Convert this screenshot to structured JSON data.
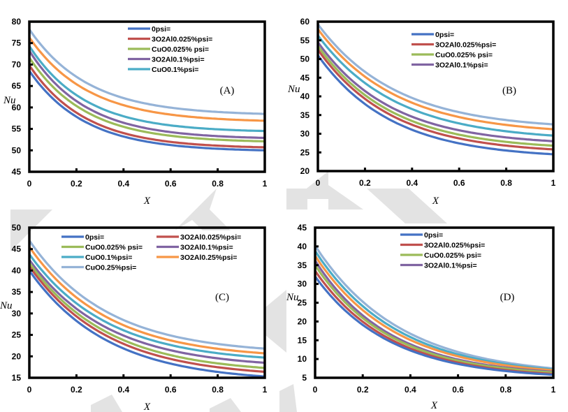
{
  "chart_data": [
    {
      "type": "line",
      "panel_label": "(A)",
      "xlabel": "X",
      "ylabel": "Nu",
      "xlim": [
        0,
        1
      ],
      "ylim": [
        45,
        80
      ],
      "x_ticks": [
        "0",
        "0.2",
        "0.4",
        "0.6",
        "0.8",
        "1"
      ],
      "y_ticks": [
        "45",
        "50",
        "55",
        "60",
        "65",
        "70",
        "75",
        "80"
      ],
      "legend": {
        "placement": "top-center",
        "columns": 1
      },
      "legend_entries": [
        "0psi=",
        "3O2Al0.025%psi=",
        "CuO0.025% psi=",
        "3O2Al0.1%psi=",
        "CuO0.1%psi="
      ],
      "series": [
        {
          "name": "0psi=",
          "color": "#4472c4",
          "in_legend": true,
          "y0": 68.5,
          "y1": 50.0,
          "k": 4.2
        },
        {
          "name": "3O2Al0.025%psi=",
          "color": "#c0504d",
          "in_legend": true,
          "y0": 69.8,
          "y1": 50.7,
          "k": 4.2
        },
        {
          "name": "CuO0.025% psi=",
          "color": "#9bbb59",
          "in_legend": true,
          "y0": 71.6,
          "y1": 52.1,
          "k": 4.2
        },
        {
          "name": "3O2Al0.1%psi=",
          "color": "#8064a2",
          "in_legend": true,
          "y0": 73.2,
          "y1": 52.9,
          "k": 4.2
        },
        {
          "name": "CuO0.1%psi=",
          "color": "#4bacc6",
          "in_legend": true,
          "y0": 74.3,
          "y1": 54.5,
          "k": 4.2
        },
        {
          "name": "3O2Al0.25%psi=",
          "color": "#f79646",
          "in_legend": false,
          "y0": 76.3,
          "y1": 56.9,
          "k": 4.0
        },
        {
          "name": "CuO0.25%psi=",
          "color": "#95b3d7",
          "in_legend": false,
          "y0": 78.2,
          "y1": 58.5,
          "k": 4.0
        }
      ]
    },
    {
      "type": "line",
      "panel_label": "(B)",
      "xlabel": "X",
      "ylabel": "Nu",
      "xlim": [
        0,
        1
      ],
      "ylim": [
        20,
        60
      ],
      "x_ticks": [
        "0",
        "0.2",
        "0.4",
        "0.6",
        "0.8",
        "1"
      ],
      "y_ticks": [
        "20",
        "25",
        "30",
        "35",
        "40",
        "45",
        "50",
        "55",
        "60"
      ],
      "legend": {
        "placement": "top-center",
        "columns": 1
      },
      "legend_entries": [
        "0psi=",
        "3O2Al0.025%psi=",
        "CuO0.025% psi=",
        "3O2Al0.1%psi="
      ],
      "series": [
        {
          "name": "0psi=",
          "color": "#4472c4",
          "in_legend": true,
          "y0": 51.0,
          "y1": 24.5,
          "k": 3.2
        },
        {
          "name": "3O2Al0.025%psi=",
          "color": "#c0504d",
          "in_legend": true,
          "y0": 52.5,
          "y1": 25.8,
          "k": 3.2
        },
        {
          "name": "CuO0.025% psi=",
          "color": "#9bbb59",
          "in_legend": true,
          "y0": 53.5,
          "y1": 26.8,
          "k": 3.2
        },
        {
          "name": "3O2Al0.1%psi=",
          "color": "#8064a2",
          "in_legend": true,
          "y0": 54.5,
          "y1": 28.0,
          "k": 3.2
        },
        {
          "name": "CuO0.1%psi=",
          "color": "#4bacc6",
          "in_legend": false,
          "y0": 56.3,
          "y1": 29.5,
          "k": 3.0
        },
        {
          "name": "3O2Al0.25%psi=",
          "color": "#f79646",
          "in_legend": false,
          "y0": 58.0,
          "y1": 31.2,
          "k": 3.0
        },
        {
          "name": "CuO0.25%psi=",
          "color": "#95b3d7",
          "in_legend": false,
          "y0": 59.3,
          "y1": 32.5,
          "k": 3.0
        }
      ]
    },
    {
      "type": "line",
      "panel_label": "(C)",
      "xlabel": "X",
      "ylabel": "Nu",
      "xlim": [
        0,
        1
      ],
      "ylim": [
        15,
        50
      ],
      "x_ticks": [
        "0",
        "0.2",
        "0.4",
        "0.6",
        "0.8",
        "1"
      ],
      "y_ticks": [
        "15",
        "20",
        "25",
        "30",
        "35",
        "40",
        "45",
        "50"
      ],
      "legend": {
        "placement": "top",
        "columns": 2
      },
      "legend_entries": [
        "0psi=",
        "3O2Al0.025%psi=",
        "CuO0.025% psi=",
        "3O2Al0.1%psi=",
        "CuO0.1%psi=",
        "3O2Al0.25%psi=",
        "CuO0.25%psi="
      ],
      "series": [
        {
          "name": "0psi=",
          "color": "#4472c4",
          "in_legend": true,
          "y0": 40.0,
          "y1": 15.3,
          "k": 3.0
        },
        {
          "name": "3O2Al0.025%psi=",
          "color": "#c0504d",
          "in_legend": true,
          "y0": 41.0,
          "y1": 16.4,
          "k": 3.0
        },
        {
          "name": "CuO0.025% psi=",
          "color": "#9bbb59",
          "in_legend": true,
          "y0": 41.8,
          "y1": 17.3,
          "k": 3.0
        },
        {
          "name": "3O2Al0.1%psi=",
          "color": "#8064a2",
          "in_legend": true,
          "y0": 42.5,
          "y1": 18.5,
          "k": 3.0
        },
        {
          "name": "CuO0.1%psi=",
          "color": "#4bacc6",
          "in_legend": true,
          "y0": 43.8,
          "y1": 19.7,
          "k": 3.0
        },
        {
          "name": "3O2Al0.25%psi=",
          "color": "#f79646",
          "in_legend": true,
          "y0": 45.5,
          "y1": 20.7,
          "k": 3.0
        },
        {
          "name": "CuO0.25%psi=",
          "color": "#95b3d7",
          "in_legend": true,
          "y0": 47.0,
          "y1": 21.8,
          "k": 3.0
        }
      ]
    },
    {
      "type": "line",
      "panel_label": "(D)",
      "xlabel": "X",
      "ylabel": "Nu",
      "xlim": [
        0,
        1
      ],
      "ylim": [
        5,
        45
      ],
      "x_ticks": [
        "0",
        "0.2",
        "0.4",
        "0.6",
        "0.8",
        "1"
      ],
      "y_ticks": [
        "5",
        "10",
        "15",
        "20",
        "25",
        "30",
        "35",
        "40",
        "45"
      ],
      "legend": {
        "placement": "top-center",
        "columns": 1
      },
      "legend_entries": [
        "0psi=",
        "3O2Al0.025%psi=",
        "CuO0.025% psi=",
        "3O2Al0.1%psi="
      ],
      "series": [
        {
          "name": "0psi=",
          "color": "#4472c4",
          "in_legend": true,
          "y0": 32.0,
          "y1": 5.8,
          "k": 3.2
        },
        {
          "name": "3O2Al0.025%psi=",
          "color": "#c0504d",
          "in_legend": true,
          "y0": 33.5,
          "y1": 6.0,
          "k": 3.2
        },
        {
          "name": "CuO0.025% psi=",
          "color": "#9bbb59",
          "in_legend": true,
          "y0": 35.0,
          "y1": 6.4,
          "k": 3.2
        },
        {
          "name": "3O2Al0.1%psi=",
          "color": "#8064a2",
          "in_legend": true,
          "y0": 36.2,
          "y1": 6.6,
          "k": 3.2
        },
        {
          "name": "3O2Al0.25%psi=",
          "color": "#f79646",
          "in_legend": false,
          "y0": 37.5,
          "y1": 7.0,
          "k": 3.0
        },
        {
          "name": "CuO0.1%psi=",
          "color": "#4bacc6",
          "in_legend": false,
          "y0": 38.8,
          "y1": 7.2,
          "k": 2.9
        },
        {
          "name": "CuO0.25%psi=",
          "color": "#95b3d7",
          "in_legend": false,
          "y0": 40.2,
          "y1": 7.5,
          "k": 2.8
        }
      ]
    }
  ]
}
